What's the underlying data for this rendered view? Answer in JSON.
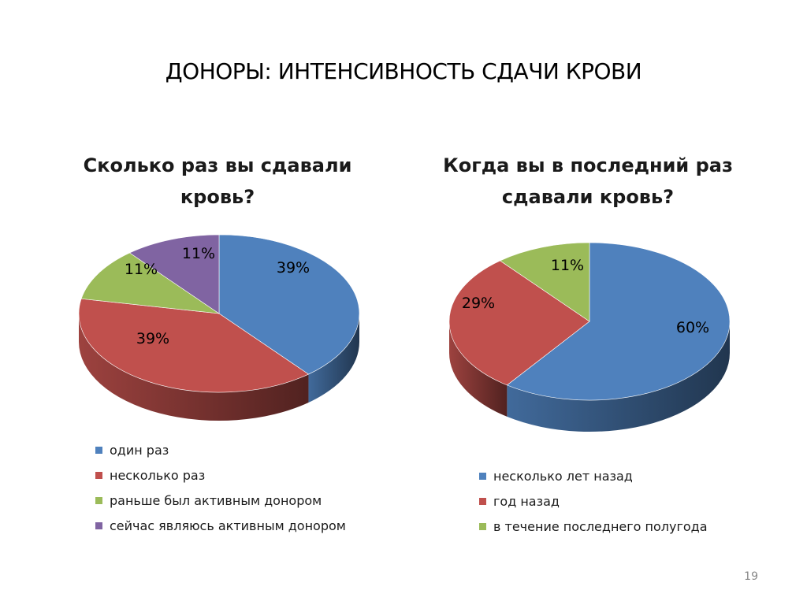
{
  "slide": {
    "title": "ДОНОРЫ: ИНТЕНСИВНОСТЬ СДАЧИ КРОВИ",
    "page_number": "19"
  },
  "chart_data": [
    {
      "type": "pie",
      "title_lines": [
        "Сколько раз вы сдавали",
        "кровь?"
      ],
      "categories": [
        "один раз",
        "несколько раз",
        "раньше был активным донором",
        "сейчас являюсь активным донором"
      ],
      "values": [
        39,
        39,
        11,
        11
      ],
      "labels": [
        "39%",
        "39%",
        "11%",
        "11%"
      ],
      "colors": [
        "#4F81BD",
        "#C0504D",
        "#9BBB59",
        "#8064A2"
      ],
      "legend_position": "bottom",
      "style": "3d-pie"
    },
    {
      "type": "pie",
      "title_lines": [
        "Когда вы в последний раз",
        "сдавали кровь?"
      ],
      "categories": [
        "несколько лет назад",
        "год назад",
        "в течение последнего полугода"
      ],
      "values": [
        60,
        29,
        11
      ],
      "labels": [
        "60%",
        "29%",
        "11%"
      ],
      "colors": [
        "#4F81BD",
        "#C0504D",
        "#9BBB59"
      ],
      "legend_position": "bottom",
      "style": "3d-pie"
    }
  ]
}
